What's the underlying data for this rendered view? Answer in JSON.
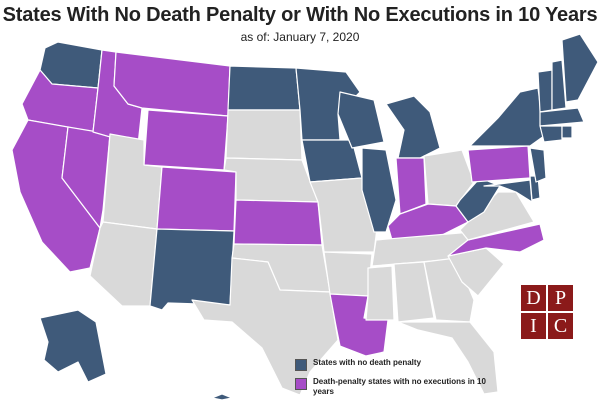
{
  "title": "States With No Death Penalty or With No Executions in 10 Years",
  "subtitle": "as of: January 7, 2020",
  "colors": {
    "no_death_penalty": "#3f5a7a",
    "no_executions_10y": "#a64dc7",
    "other": "#d9d9d9"
  },
  "legend": [
    {
      "label": "States with no death penalty",
      "color": "#3f5a7a"
    },
    {
      "label": "Death-penalty states with no executions in 10 years",
      "color": "#a64dc7"
    }
  ],
  "logo": {
    "letters": [
      "D",
      "P",
      "I",
      "C"
    ]
  },
  "states": {
    "no_death_penalty": [
      "Washington",
      "North Dakota",
      "Minnesota",
      "Iowa",
      "Wisconsin",
      "Michigan",
      "Illinois",
      "New Mexico",
      "West Virginia",
      "Maryland",
      "Delaware",
      "New Jersey",
      "New York",
      "Connecticut",
      "Rhode Island",
      "Massachusetts",
      "Vermont",
      "New Hampshire",
      "Maine",
      "Alaska",
      "Hawaii"
    ],
    "no_executions_10y": [
      "Oregon",
      "California",
      "Nevada",
      "Idaho",
      "Montana",
      "Wyoming",
      "Colorado",
      "Kansas",
      "Louisiana",
      "Indiana",
      "Kentucky",
      "Pennsylvania",
      "North Carolina"
    ]
  }
}
